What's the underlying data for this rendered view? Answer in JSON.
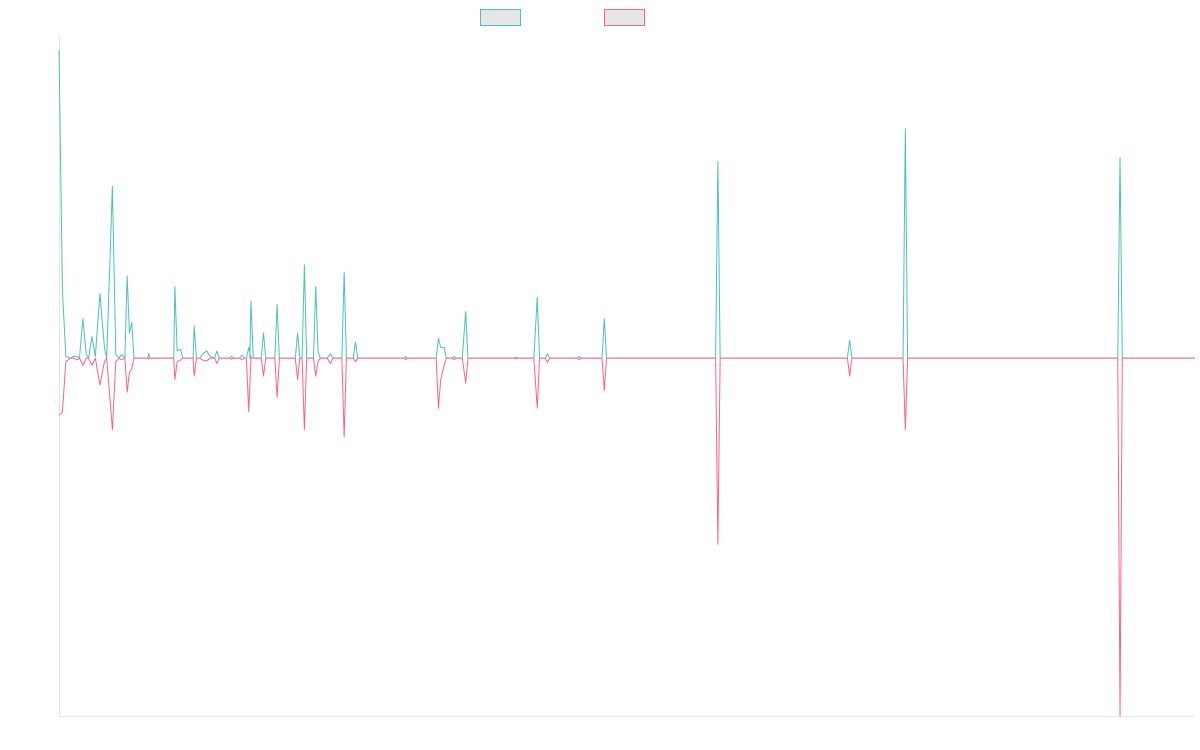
{
  "chart_data": {
    "type": "line",
    "title": "",
    "xlabel": "",
    "ylabel": "",
    "ylim": [
      -1,
      0.9
    ],
    "xlim": [
      0,
      1000
    ],
    "grid": false,
    "legend_position": "top-center",
    "series": [
      {
        "color": "#4bc0c0",
        "fill": "#e6e6e6",
        "points": [
          [
            0,
            0.86
          ],
          [
            3,
            0.19
          ],
          [
            6,
            0.005
          ],
          [
            10,
            0
          ],
          [
            13,
            0.005
          ],
          [
            16,
            0.004
          ],
          [
            18,
            0
          ],
          [
            21,
            0.11
          ],
          [
            24,
            0.01
          ],
          [
            26,
            0
          ],
          [
            29,
            0.06
          ],
          [
            32,
            0.005
          ],
          [
            36,
            0.18
          ],
          [
            40,
            0.03
          ],
          [
            42,
            0
          ],
          [
            47,
            0.48
          ],
          [
            50,
            0.01
          ],
          [
            53,
            0
          ],
          [
            55,
            0.01
          ],
          [
            58,
            0
          ],
          [
            60,
            0.23
          ],
          [
            62,
            0.07
          ],
          [
            64,
            0.1
          ],
          [
            66,
            0
          ],
          [
            78,
            0
          ],
          [
            79,
            0.013
          ],
          [
            80,
            0
          ],
          [
            101,
            0
          ],
          [
            102,
            0.2
          ],
          [
            104,
            0.02
          ],
          [
            107,
            0.025
          ],
          [
            109,
            0
          ],
          [
            118,
            0
          ],
          [
            119,
            0.09
          ],
          [
            121,
            0
          ],
          [
            124,
            0
          ],
          [
            126,
            0.01
          ],
          [
            130,
            0.02
          ],
          [
            133,
            0.005
          ],
          [
            137,
            0
          ],
          [
            139,
            0.02
          ],
          [
            141,
            0
          ],
          [
            150,
            0
          ],
          [
            152,
            0.005
          ],
          [
            154,
            0
          ],
          [
            159,
            0
          ],
          [
            161,
            0.008
          ],
          [
            163,
            0
          ],
          [
            165,
            0
          ],
          [
            167,
            0.03
          ],
          [
            169,
            0
          ],
          [
            168,
            0
          ],
          [
            169,
            0.16
          ],
          [
            171,
            0
          ],
          [
            178,
            0
          ],
          [
            180,
            0.07
          ],
          [
            182,
            0
          ],
          [
            190,
            0
          ],
          [
            192,
            0.15
          ],
          [
            194,
            0
          ],
          [
            208,
            0
          ],
          [
            210,
            0.07
          ],
          [
            212,
            0
          ],
          [
            214,
            0
          ],
          [
            216,
            0.26
          ],
          [
            218,
            0
          ],
          [
            224,
            0
          ],
          [
            226,
            0.2
          ],
          [
            228,
            0.02
          ],
          [
            230,
            0
          ],
          [
            236,
            0
          ],
          [
            239,
            0.012
          ],
          [
            241,
            0
          ],
          [
            249,
            0
          ],
          [
            251,
            0.24
          ],
          [
            253,
            0
          ],
          [
            259,
            0
          ],
          [
            261,
            0.045
          ],
          [
            263,
            0
          ],
          [
            304,
            0
          ],
          [
            305,
            0.004
          ],
          [
            307,
            0
          ],
          [
            332,
            0
          ],
          [
            334,
            0.055
          ],
          [
            336,
            0.03
          ],
          [
            339,
            0.03
          ],
          [
            341,
            0
          ],
          [
            346,
            0
          ],
          [
            348,
            0.004
          ],
          [
            350,
            0
          ],
          [
            355,
            0
          ],
          [
            358,
            0.13
          ],
          [
            360,
            0
          ],
          [
            400,
            0
          ],
          [
            402,
            0.002
          ],
          [
            404,
            0
          ],
          [
            418,
            0
          ],
          [
            421,
            0.17
          ],
          [
            423,
            0
          ],
          [
            428,
            0
          ],
          [
            430,
            0.012
          ],
          [
            432,
            0
          ],
          [
            456,
            0
          ],
          [
            458,
            0.004
          ],
          [
            460,
            0
          ],
          [
            478,
            0
          ],
          [
            480,
            0.11
          ],
          [
            482,
            0
          ],
          [
            578,
            0
          ],
          [
            580,
            0.55
          ],
          [
            582,
            0
          ],
          [
            694,
            0
          ],
          [
            696,
            0.05
          ],
          [
            698,
            0
          ],
          [
            743,
            0
          ],
          [
            745,
            0.64
          ],
          [
            747,
            0
          ],
          [
            932,
            0
          ],
          [
            934,
            0.56
          ],
          [
            936,
            0
          ],
          [
            1000,
            0
          ]
        ]
      },
      {
        "color": "#ff6384",
        "fill": "#e6e6e6",
        "points": [
          [
            0,
            -0.16
          ],
          [
            3,
            -0.15
          ],
          [
            6,
            -0.01
          ],
          [
            10,
            0
          ],
          [
            13,
            0
          ],
          [
            16,
            -0.005
          ],
          [
            18,
            0
          ],
          [
            21,
            -0.02
          ],
          [
            24,
            0
          ],
          [
            26,
            0
          ],
          [
            29,
            -0.02
          ],
          [
            32,
            0
          ],
          [
            36,
            -0.075
          ],
          [
            40,
            -0.01
          ],
          [
            42,
            0
          ],
          [
            47,
            -0.2
          ],
          [
            50,
            -0.01
          ],
          [
            53,
            0
          ],
          [
            55,
            -0.005
          ],
          [
            58,
            0
          ],
          [
            60,
            -0.095
          ],
          [
            62,
            -0.04
          ],
          [
            64,
            -0.03
          ],
          [
            66,
            0
          ],
          [
            78,
            0
          ],
          [
            79,
            -0.003
          ],
          [
            80,
            0
          ],
          [
            101,
            0
          ],
          [
            102,
            -0.06
          ],
          [
            104,
            -0.01
          ],
          [
            107,
            -0.005
          ],
          [
            109,
            0
          ],
          [
            118,
            0
          ],
          [
            119,
            -0.05
          ],
          [
            121,
            0
          ],
          [
            124,
            0
          ],
          [
            126,
            -0.005
          ],
          [
            130,
            -0.008
          ],
          [
            133,
            0
          ],
          [
            137,
            0
          ],
          [
            139,
            -0.015
          ],
          [
            141,
            0
          ],
          [
            150,
            0
          ],
          [
            152,
            -0.003
          ],
          [
            154,
            0
          ],
          [
            159,
            0
          ],
          [
            161,
            -0.005
          ],
          [
            163,
            0
          ],
          [
            165,
            0
          ],
          [
            167,
            -0.15
          ],
          [
            169,
            0
          ],
          [
            168,
            0
          ],
          [
            169,
            0
          ],
          [
            171,
            0
          ],
          [
            178,
            0
          ],
          [
            180,
            -0.05
          ],
          [
            182,
            0
          ],
          [
            190,
            0
          ],
          [
            192,
            -0.11
          ],
          [
            194,
            0
          ],
          [
            208,
            0
          ],
          [
            210,
            -0.06
          ],
          [
            212,
            0
          ],
          [
            214,
            0
          ],
          [
            216,
            -0.2
          ],
          [
            218,
            0
          ],
          [
            224,
            0
          ],
          [
            226,
            -0.05
          ],
          [
            228,
            -0.01
          ],
          [
            230,
            0
          ],
          [
            236,
            0
          ],
          [
            239,
            -0.015
          ],
          [
            241,
            0
          ],
          [
            249,
            0
          ],
          [
            251,
            -0.22
          ],
          [
            253,
            0
          ],
          [
            259,
            0
          ],
          [
            261,
            -0.01
          ],
          [
            263,
            0
          ],
          [
            304,
            0
          ],
          [
            305,
            -0.004
          ],
          [
            307,
            0
          ],
          [
            332,
            0
          ],
          [
            334,
            -0.14
          ],
          [
            336,
            -0.06
          ],
          [
            339,
            -0.02
          ],
          [
            341,
            0
          ],
          [
            346,
            0
          ],
          [
            348,
            -0.004
          ],
          [
            350,
            0
          ],
          [
            355,
            0
          ],
          [
            358,
            -0.07
          ],
          [
            360,
            0
          ],
          [
            400,
            0
          ],
          [
            402,
            -0.002
          ],
          [
            404,
            0
          ],
          [
            418,
            0
          ],
          [
            421,
            -0.14
          ],
          [
            423,
            0
          ],
          [
            428,
            0
          ],
          [
            430,
            -0.012
          ],
          [
            432,
            0
          ],
          [
            456,
            0
          ],
          [
            458,
            -0.004
          ],
          [
            460,
            0
          ],
          [
            478,
            0
          ],
          [
            480,
            -0.09
          ],
          [
            482,
            0
          ],
          [
            578,
            0
          ],
          [
            580,
            -0.52
          ],
          [
            582,
            0
          ],
          [
            694,
            0
          ],
          [
            696,
            -0.05
          ],
          [
            698,
            0
          ],
          [
            743,
            0
          ],
          [
            745,
            -0.2
          ],
          [
            747,
            0
          ],
          [
            932,
            0
          ],
          [
            934,
            -1.0
          ],
          [
            936,
            0
          ],
          [
            1000,
            0
          ]
        ]
      }
    ]
  }
}
